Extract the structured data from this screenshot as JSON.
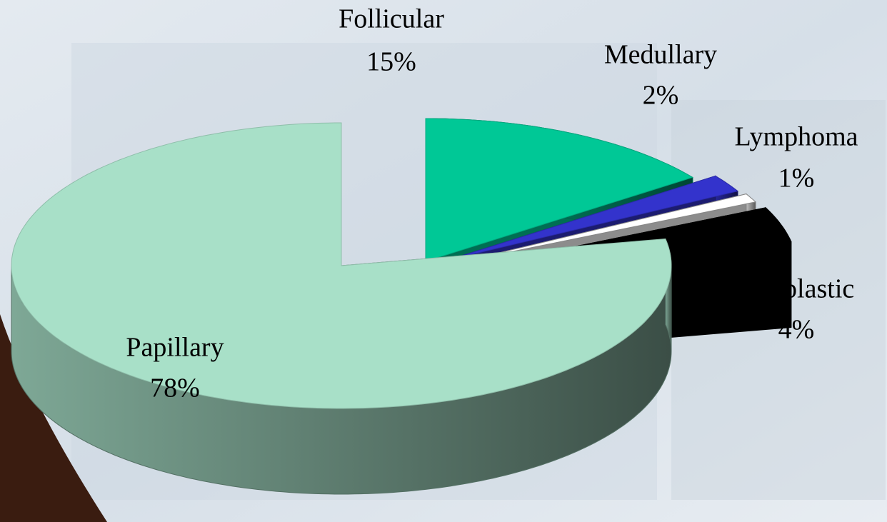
{
  "chart_data": {
    "type": "pie",
    "categories": [
      "Follicular",
      "Medullary",
      "Lymphoma",
      "Anaplastic",
      "Papillary"
    ],
    "values": [
      15,
      2,
      1,
      4,
      78
    ],
    "value_labels": [
      "15%",
      "2%",
      "1%",
      "4%",
      "78%"
    ],
    "colors": [
      "#00c896",
      "#3333cc",
      "#ffffff",
      "#000000",
      "#a8e0c8"
    ]
  }
}
